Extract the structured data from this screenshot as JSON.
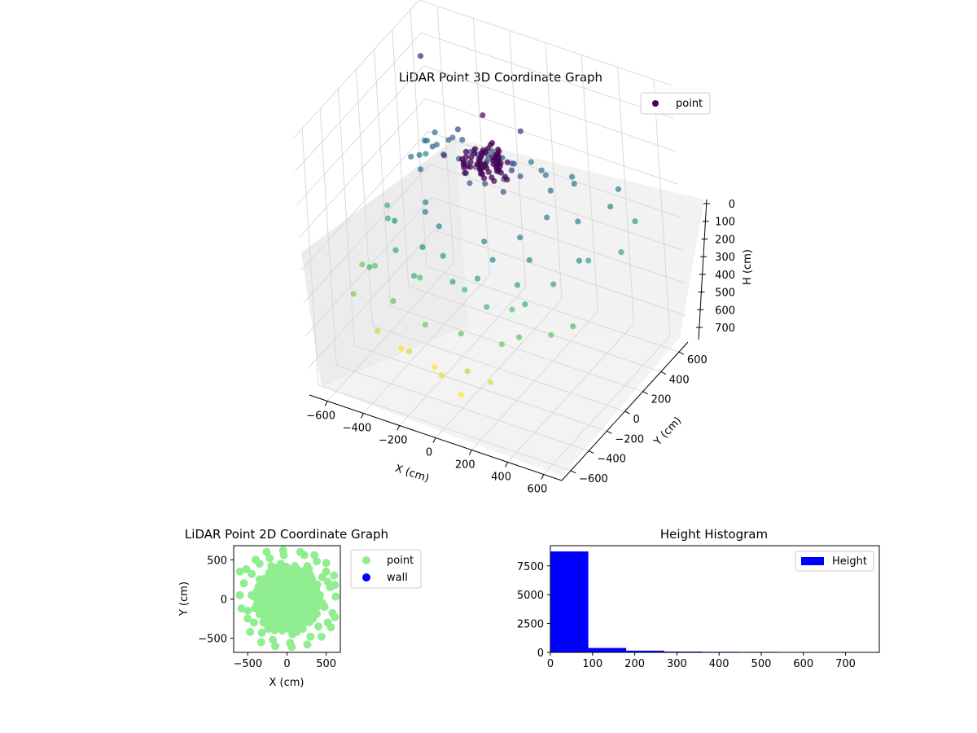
{
  "chart_data": [
    {
      "type": "scatter",
      "title": "LiDAR Point 3D Coordinate Graph",
      "xlabel": "X (cm)",
      "ylabel": "Y (cm)",
      "zlabel": "H (cm)",
      "xlim": [
        -700,
        700
      ],
      "ylim": [
        -700,
        700
      ],
      "zlim": [
        0,
        780
      ],
      "z_inverted": true,
      "x_ticks": [
        "−600",
        "−400",
        "−200",
        "0",
        "200",
        "400",
        "600"
      ],
      "y_ticks": [
        "−600",
        "−400",
        "−200",
        "0",
        "200",
        "400",
        "600"
      ],
      "z_ticks": [
        "0",
        "100",
        "200",
        "300",
        "400",
        "500",
        "600",
        "700"
      ],
      "colormap": "viridis",
      "legend": {
        "position": "top-right",
        "entries": [
          "point"
        ]
      },
      "series": [
        {
          "name": "point",
          "points": [
            [
              10,
              0,
              145
            ],
            [
              40,
              60,
              155
            ],
            [
              -60,
              30,
              150
            ],
            [
              80,
              -20,
              160
            ],
            [
              -20,
              -70,
              150
            ],
            [
              100,
              90,
              165
            ],
            [
              -90,
              -40,
              158
            ],
            [
              30,
              120,
              170
            ],
            [
              -120,
              70,
              165
            ],
            [
              130,
              -60,
              162
            ],
            [
              -40,
              150,
              172
            ],
            [
              60,
              -130,
              168
            ],
            [
              -150,
              0,
              170
            ],
            [
              170,
              40,
              176
            ],
            [
              -10,
              -160,
              170
            ],
            [
              0,
              30,
              140
            ],
            [
              20,
              -30,
              142
            ],
            [
              -30,
              10,
              146
            ],
            [
              50,
              20,
              150
            ],
            [
              -70,
              -80,
              175
            ],
            [
              90,
              130,
              180
            ],
            [
              -130,
              120,
              178
            ],
            [
              150,
              -110,
              182
            ],
            [
              -420,
              150,
              210
            ],
            [
              -380,
              200,
              230
            ],
            [
              -350,
              100,
              200
            ],
            [
              -400,
              50,
              220
            ],
            [
              -450,
              230,
              240
            ],
            [
              -320,
              260,
              215
            ],
            [
              -360,
              -20,
              235
            ],
            [
              -300,
              180,
              195
            ],
            [
              -470,
              90,
              250
            ],
            [
              -280,
              80,
              205
            ],
            [
              -250,
              230,
              200
            ],
            [
              -430,
              280,
              226
            ],
            [
              200,
              250,
              230
            ],
            [
              260,
              180,
              245
            ],
            [
              320,
              320,
              255
            ],
            [
              150,
              300,
              240
            ],
            [
              -100,
              320,
              250
            ],
            [
              -200,
              380,
              270
            ],
            [
              40,
              400,
              265
            ],
            [
              250,
              430,
              280
            ],
            [
              -250,
              -200,
              290
            ],
            [
              -150,
              -250,
              300
            ],
            [
              100,
              -250,
              300
            ],
            [
              250,
              -150,
              290
            ],
            [
              300,
              50,
              280
            ],
            [
              -300,
              -100,
              300
            ],
            [
              180,
              -320,
              320
            ],
            [
              -180,
              -380,
              330
            ],
            [
              350,
              -250,
              310
            ],
            [
              420,
              150,
              300
            ],
            [
              -400,
              -250,
              330
            ],
            [
              -500,
              300,
              310
            ],
            [
              500,
              350,
              300
            ],
            [
              550,
              -100,
              320
            ],
            [
              480,
              480,
              290
            ],
            [
              -350,
              -350,
              380
            ],
            [
              -200,
              -450,
              400
            ],
            [
              0,
              -420,
              390
            ],
            [
              200,
              -450,
              420
            ],
            [
              380,
              -380,
              400
            ],
            [
              450,
              -200,
              380
            ],
            [
              520,
              50,
              370
            ],
            [
              -520,
              -100,
              390
            ],
            [
              -100,
              -320,
              360
            ],
            [
              120,
              -380,
              370
            ],
            [
              300,
              -300,
              380
            ],
            [
              600,
              250,
              390
            ],
            [
              -600,
              50,
              410
            ],
            [
              -450,
              -450,
              420
            ],
            [
              580,
              450,
              360
            ],
            [
              -300,
              -500,
              480
            ],
            [
              -100,
              -550,
              500
            ],
            [
              100,
              -550,
              490
            ],
            [
              300,
              -500,
              500
            ],
            [
              -500,
              -300,
              470
            ],
            [
              500,
              -350,
              480
            ],
            [
              -250,
              -300,
              460
            ],
            [
              250,
              -280,
              470
            ],
            [
              0,
              -300,
              450
            ],
            [
              -550,
              -450,
              520
            ],
            [
              400,
              -500,
              460
            ],
            [
              600,
              -300,
              450
            ],
            [
              -600,
              -250,
              500
            ],
            [
              -200,
              -550,
              600
            ],
            [
              0,
              -600,
              620
            ],
            [
              150,
              -600,
              580
            ],
            [
              -400,
              -500,
              590
            ],
            [
              250,
              -550,
              610
            ],
            [
              -100,
              -480,
              650
            ],
            [
              50,
              -500,
              700
            ],
            [
              -300,
              -450,
              640
            ],
            [
              -560,
              420,
              60
            ],
            [
              0,
              0,
              10
            ],
            [
              -200,
              100,
              120
            ],
            [
              200,
              -100,
              110
            ],
            [
              100,
              200,
              100
            ],
            [
              -150,
              -150,
              115
            ]
          ]
        }
      ]
    },
    {
      "type": "scatter",
      "title": "LiDAR Point 2D Coordinate Graph",
      "xlabel": "X (cm)",
      "ylabel": "Y (cm)",
      "xlim": [
        -680,
        680
      ],
      "ylim": [
        -680,
        680
      ],
      "x_ticks": [
        "−500",
        "0",
        "500"
      ],
      "y_ticks": [
        "−500",
        "0",
        "500"
      ],
      "legend": {
        "position": "outside-right",
        "entries": [
          "point",
          "wall"
        ]
      },
      "colors": {
        "point": "#90ee90",
        "wall": "#0000ff"
      },
      "series": [
        {
          "name": "point",
          "points": [
            [
              -600,
              50
            ],
            [
              -550,
              200
            ],
            [
              -500,
              -150
            ],
            [
              -450,
              320
            ],
            [
              -420,
              -300
            ],
            [
              -380,
              100
            ],
            [
              -350,
              450
            ],
            [
              -320,
              -430
            ],
            [
              -300,
              -50
            ],
            [
              -280,
              250
            ],
            [
              -250,
              -200
            ],
            [
              -220,
              520
            ],
            [
              -200,
              0
            ],
            [
              -180,
              -520
            ],
            [
              -150,
              380
            ],
            [
              -120,
              -100
            ],
            [
              -100,
              180
            ],
            [
              -80,
              -350
            ],
            [
              -60,
              80
            ],
            [
              -40,
              560
            ],
            [
              -20,
              -250
            ],
            [
              0,
              0
            ],
            [
              20,
              320
            ],
            [
              40,
              -560
            ],
            [
              60,
              120
            ],
            [
              80,
              -150
            ],
            [
              100,
              420
            ],
            [
              120,
              -420
            ],
            [
              150,
              50
            ],
            [
              180,
              260
            ],
            [
              200,
              -280
            ],
            [
              220,
              560
            ],
            [
              250,
              -50
            ],
            [
              280,
              380
            ],
            [
              300,
              -480
            ],
            [
              320,
              150
            ],
            [
              350,
              -200
            ],
            [
              380,
              480
            ],
            [
              400,
              -350
            ],
            [
              420,
              50
            ],
            [
              450,
              280
            ],
            [
              480,
              -100
            ],
            [
              500,
              350
            ],
            [
              520,
              -300
            ],
            [
              550,
              150
            ],
            [
              580,
              -180
            ],
            [
              600,
              300
            ],
            [
              620,
              30
            ],
            [
              -580,
              -120
            ],
            [
              -520,
              380
            ],
            [
              -470,
              -420
            ],
            [
              -400,
              500
            ],
            [
              -330,
              -550
            ],
            [
              -260,
              600
            ],
            [
              -150,
              -600
            ],
            [
              -50,
              620
            ],
            [
              60,
              -610
            ],
            [
              170,
              600
            ],
            [
              260,
              -580
            ],
            [
              350,
              560
            ],
            [
              440,
              -480
            ],
            [
              500,
              460
            ],
            [
              560,
              -360
            ],
            [
              610,
              180
            ],
            [
              -100,
              -50
            ],
            [
              50,
              60
            ],
            [
              -30,
              120
            ],
            [
              120,
              -30
            ],
            [
              -150,
              100
            ],
            [
              100,
              150
            ],
            [
              -60,
              -180
            ],
            [
              180,
              -120
            ],
            [
              -250,
              100
            ],
            [
              250,
              120
            ],
            [
              0,
              -200
            ],
            [
              0,
              230
            ],
            [
              -300,
              -300
            ],
            [
              300,
              300
            ],
            [
              -350,
              250
            ],
            [
              330,
              -250
            ],
            [
              -450,
              50
            ],
            [
              450,
              -50
            ],
            [
              -200,
              420
            ],
            [
              200,
              -380
            ],
            [
              -500,
              -250
            ],
            [
              520,
              220
            ],
            [
              -400,
              -120
            ],
            [
              380,
              80
            ],
            [
              -120,
              300
            ],
            [
              140,
              -300
            ],
            [
              -80,
              450
            ],
            [
              70,
              -450
            ],
            [
              -240,
              -380
            ],
            [
              260,
              420
            ],
            [
              -600,
              350
            ],
            [
              610,
              -230
            ]
          ]
        },
        {
          "name": "wall",
          "points": []
        }
      ]
    },
    {
      "type": "bar",
      "title": "Height Histogram",
      "xlabel": "",
      "ylabel": "",
      "xlim": [
        0,
        780
      ],
      "ylim": [
        0,
        9250
      ],
      "x_ticks": [
        "0",
        "100",
        "200",
        "300",
        "400",
        "500",
        "600",
        "700"
      ],
      "y_ticks": [
        "0",
        "2500",
        "5000",
        "7500"
      ],
      "legend": {
        "position": "top-right",
        "entries": [
          "Height"
        ]
      },
      "colors": {
        "bar": "#0000ff"
      },
      "series": [
        {
          "name": "Height",
          "bins": [
            [
              0,
              90,
              8750
            ],
            [
              90,
              180,
              380
            ],
            [
              180,
              270,
              150
            ],
            [
              270,
              360,
              70
            ],
            [
              360,
              450,
              50
            ],
            [
              450,
              540,
              40
            ],
            [
              540,
              560,
              30
            ]
          ]
        }
      ]
    }
  ]
}
